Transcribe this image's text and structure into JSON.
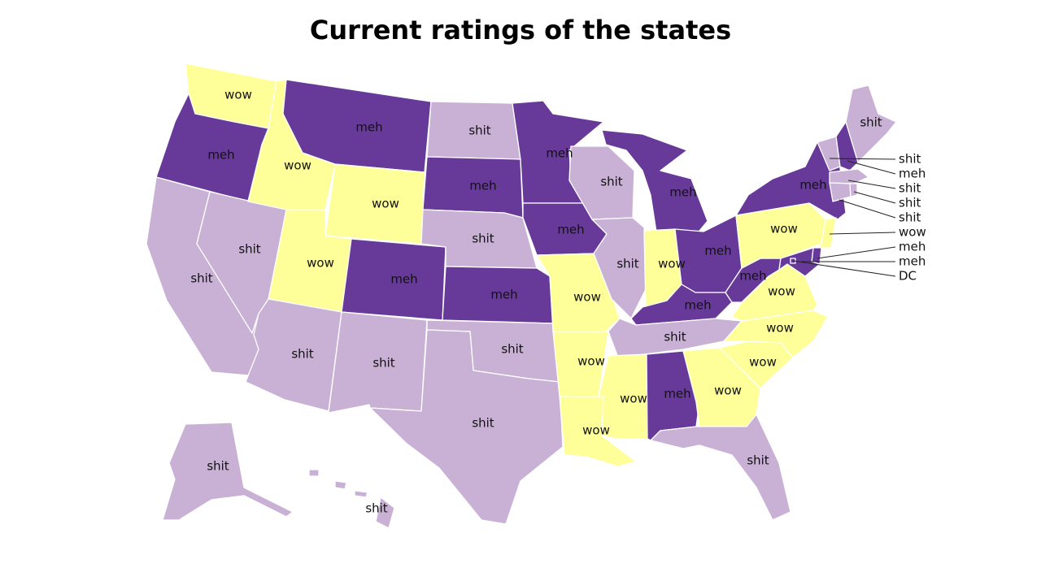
{
  "title": "Current ratings of the states",
  "colors": {
    "meh": "#673a99",
    "shit": "#c9b1d6",
    "wow": "#ffff99"
  },
  "states": [
    {
      "id": "WA",
      "rating": "wow",
      "label": "wow"
    },
    {
      "id": "OR",
      "rating": "meh",
      "label": "meh"
    },
    {
      "id": "CA",
      "rating": "shit",
      "label": "shit"
    },
    {
      "id": "NV",
      "rating": "shit",
      "label": "shit"
    },
    {
      "id": "ID",
      "rating": "wow",
      "label": "wow"
    },
    {
      "id": "MT",
      "rating": "meh",
      "label": "meh"
    },
    {
      "id": "WY",
      "rating": "wow",
      "label": "wow"
    },
    {
      "id": "UT",
      "rating": "wow",
      "label": "wow"
    },
    {
      "id": "AZ",
      "rating": "shit",
      "label": "shit"
    },
    {
      "id": "CO",
      "rating": "meh",
      "label": "meh"
    },
    {
      "id": "NM",
      "rating": "shit",
      "label": "shit"
    },
    {
      "id": "ND",
      "rating": "shit",
      "label": "shit"
    },
    {
      "id": "SD",
      "rating": "meh",
      "label": "meh"
    },
    {
      "id": "NE",
      "rating": "shit",
      "label": "shit"
    },
    {
      "id": "KS",
      "rating": "meh",
      "label": "meh"
    },
    {
      "id": "OK",
      "rating": "shit",
      "label": "shit"
    },
    {
      "id": "TX",
      "rating": "shit",
      "label": "shit"
    },
    {
      "id": "MN",
      "rating": "meh",
      "label": "meh"
    },
    {
      "id": "IA",
      "rating": "meh",
      "label": "meh"
    },
    {
      "id": "MO",
      "rating": "wow",
      "label": "wow"
    },
    {
      "id": "AR",
      "rating": "wow",
      "label": "wow"
    },
    {
      "id": "LA",
      "rating": "wow",
      "label": "wow"
    },
    {
      "id": "WI",
      "rating": "shit",
      "label": "shit"
    },
    {
      "id": "IL",
      "rating": "shit",
      "label": "shit"
    },
    {
      "id": "MI",
      "rating": "meh",
      "label": "meh"
    },
    {
      "id": "IN",
      "rating": "wow",
      "label": "wow"
    },
    {
      "id": "OH",
      "rating": "meh",
      "label": "meh"
    },
    {
      "id": "KY",
      "rating": "meh",
      "label": "meh"
    },
    {
      "id": "TN",
      "rating": "shit",
      "label": "shit"
    },
    {
      "id": "MS",
      "rating": "wow",
      "label": "wow"
    },
    {
      "id": "AL",
      "rating": "meh",
      "label": "meh"
    },
    {
      "id": "GA",
      "rating": "wow",
      "label": "wow"
    },
    {
      "id": "FL",
      "rating": "shit",
      "label": "shit"
    },
    {
      "id": "SC",
      "rating": "wow",
      "label": "wow"
    },
    {
      "id": "NC",
      "rating": "wow",
      "label": "wow"
    },
    {
      "id": "VA",
      "rating": "wow",
      "label": "wow"
    },
    {
      "id": "WV",
      "rating": "meh",
      "label": "meh"
    },
    {
      "id": "PA",
      "rating": "wow",
      "label": "wow"
    },
    {
      "id": "NY",
      "rating": "meh",
      "label": "meh"
    },
    {
      "id": "ME",
      "rating": "shit",
      "label": "shit"
    },
    {
      "id": "AK",
      "rating": "shit",
      "label": "shit"
    },
    {
      "id": "HI",
      "rating": "shit",
      "label": "shit"
    }
  ],
  "callouts": [
    {
      "id": "VT",
      "rating": "shit",
      "label": "shit"
    },
    {
      "id": "NH",
      "rating": "meh",
      "label": "meh"
    },
    {
      "id": "MA",
      "rating": "shit",
      "label": "shit"
    },
    {
      "id": "RI",
      "rating": "shit",
      "label": "shit"
    },
    {
      "id": "CT",
      "rating": "shit",
      "label": "shit"
    },
    {
      "id": "NJ",
      "rating": "wow",
      "label": "wow"
    },
    {
      "id": "DE",
      "rating": "meh",
      "label": "meh"
    },
    {
      "id": "MD",
      "rating": "meh",
      "label": "meh"
    },
    {
      "id": "DC",
      "rating": "meh",
      "label": "DC"
    }
  ]
}
